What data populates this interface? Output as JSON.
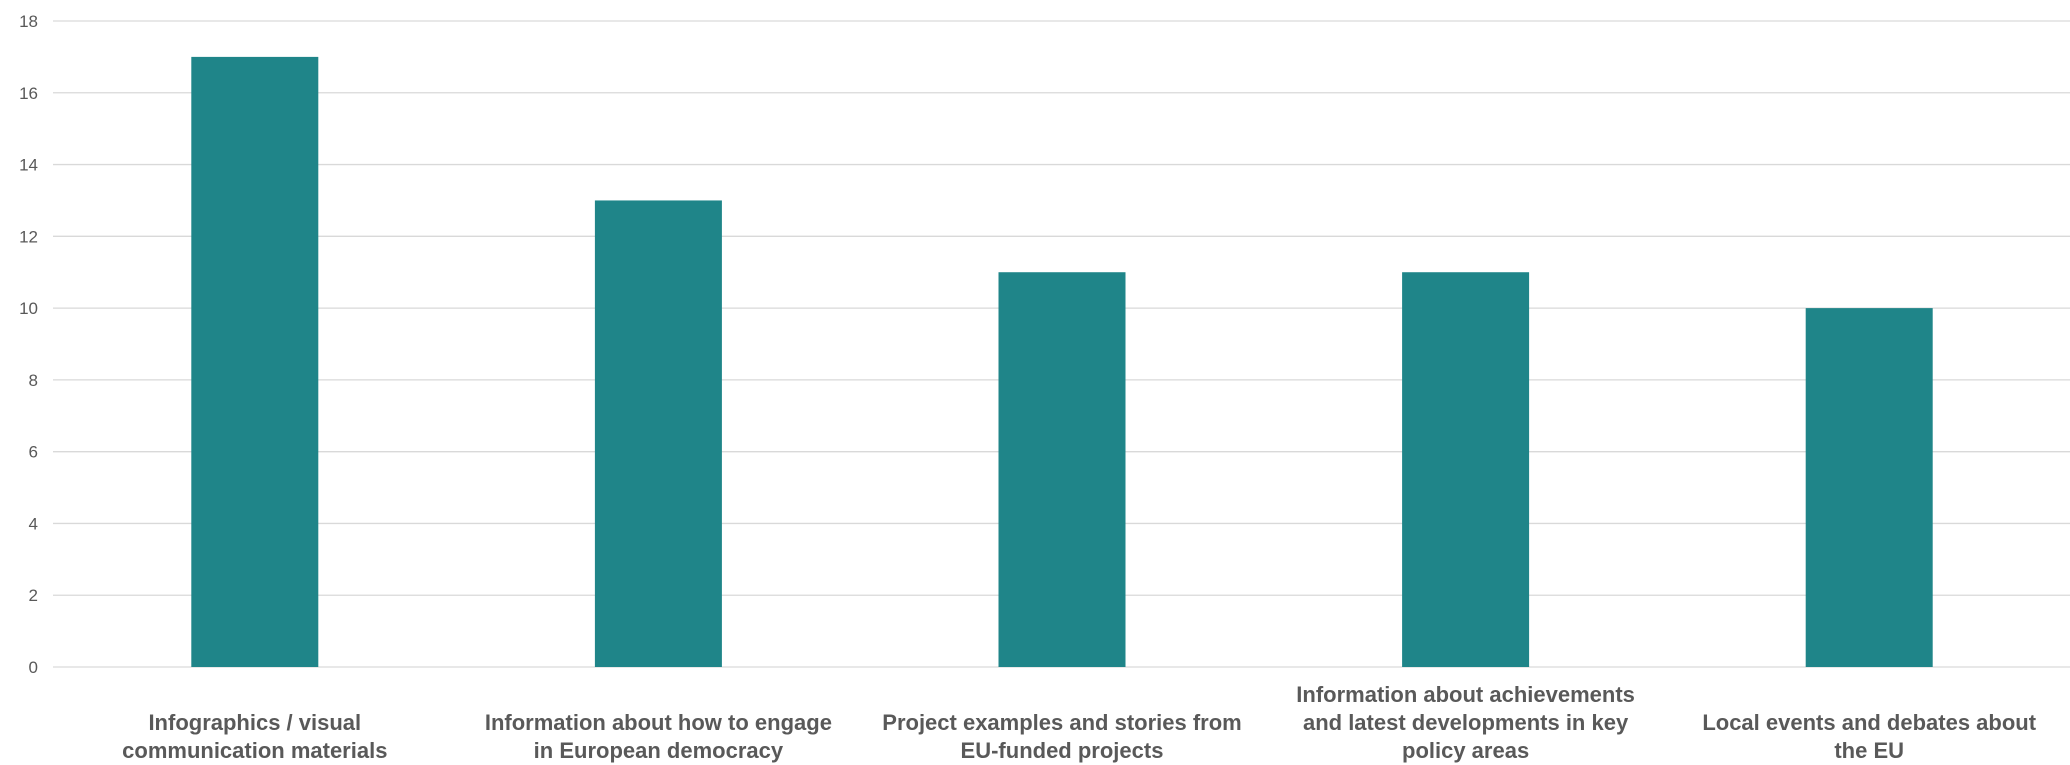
{
  "chart_data": {
    "type": "bar",
    "title": "",
    "xlabel": "",
    "ylabel": "",
    "ylim": [
      0,
      18
    ],
    "yticks": [
      0,
      2,
      4,
      6,
      8,
      10,
      12,
      14,
      16,
      18
    ],
    "grid": true,
    "legend": "none",
    "bar_color": "#1f8589",
    "categories": [
      "Infographics / visual communication materials",
      "Information about how to engage in European democracy",
      "Project examples and stories from EU-funded projects",
      "Information about achievements and latest developments in key policy areas",
      "Local events and debates about the EU"
    ],
    "category_lines": [
      [
        "Infographics / visual",
        "communication materials"
      ],
      [
        "Information about how to engage",
        "in European democracy"
      ],
      [
        "Project examples and stories from",
        "EU-funded projects"
      ],
      [
        "Information about achievements",
        "and latest developments in key",
        "policy areas"
      ],
      [
        "Local events and debates about",
        "the EU"
      ]
    ],
    "values": [
      17,
      13,
      11,
      11,
      10
    ]
  }
}
